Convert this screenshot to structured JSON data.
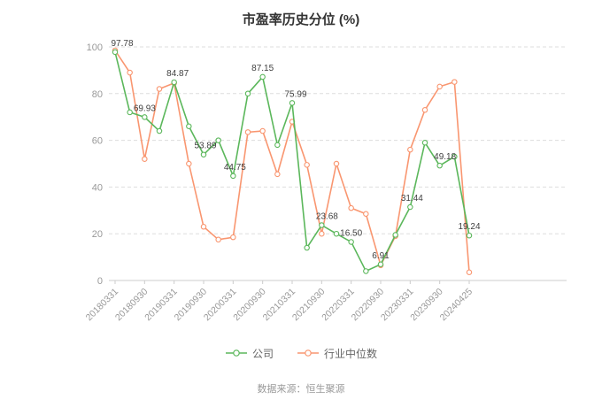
{
  "title": "市盈率历史分位 (%)",
  "footer": "数据来源：恒生聚源",
  "colors": {
    "company": "#5bb75b",
    "industry": "#f99670",
    "grid": "#dddddd",
    "axis": "#cccccc",
    "axis_text": "#999999",
    "label_text": "#404040",
    "background": "#ffffff"
  },
  "chart_data": {
    "type": "line",
    "title": "市盈率历史分位 (%)",
    "x": [
      "20180331",
      "20180630",
      "20180930",
      "20181231",
      "20190331",
      "20190630",
      "20190930",
      "20191231",
      "20200331",
      "20200630",
      "20200930",
      "20201231",
      "20210331",
      "20210630",
      "20210930",
      "20211231",
      "20220331",
      "20220630",
      "20220930",
      "20221231",
      "20230331",
      "20230630",
      "20230930",
      "20231231",
      "20240425"
    ],
    "x_tick_labels": [
      "20180331",
      "20180930",
      "20190331",
      "20190930",
      "20200331",
      "20200930",
      "20210331",
      "20210930",
      "20220331",
      "20220930",
      "20230331",
      "20230930",
      "20240425"
    ],
    "x_tick_indices": [
      0,
      2,
      4,
      6,
      8,
      10,
      12,
      14,
      16,
      18,
      20,
      22,
      24
    ],
    "ylim": [
      0,
      100
    ],
    "yticks": [
      0,
      20,
      40,
      60,
      80,
      100
    ],
    "grid": "horizontal-dashed",
    "legend_position": "bottom",
    "series": [
      {
        "name": "公司",
        "color": "#5bb75b",
        "values": [
          97.78,
          72.0,
          69.93,
          64.0,
          84.87,
          66.0,
          53.89,
          60.0,
          44.75,
          80.0,
          87.15,
          58.0,
          75.99,
          14.0,
          23.68,
          20.0,
          16.5,
          4.0,
          6.91,
          19.5,
          31.44,
          59.0,
          49.18,
          53.0,
          19.24
        ]
      },
      {
        "name": "行业中位数",
        "color": "#f99670",
        "values": [
          98.5,
          89.0,
          52.0,
          82.0,
          84.5,
          50.0,
          23.0,
          17.5,
          18.5,
          63.5,
          64.0,
          45.5,
          68.0,
          49.5,
          20.0,
          50.0,
          31.0,
          28.5,
          6.5,
          19.0,
          56.0,
          73.0,
          83.0,
          85.0,
          3.5
        ]
      }
    ],
    "point_labels": {
      "series": "公司",
      "labels": [
        {
          "index": 0,
          "text": "97.78",
          "dx": 8
        },
        {
          "index": 2,
          "text": "69.93",
          "dx": 0
        },
        {
          "index": 4,
          "text": "84.87",
          "dx": 4
        },
        {
          "index": 6,
          "text": "53.89",
          "dx": 2
        },
        {
          "index": 8,
          "text": "44.75",
          "dx": 2
        },
        {
          "index": 10,
          "text": "87.15",
          "dx": 0
        },
        {
          "index": 12,
          "text": "75.99",
          "dx": 4
        },
        {
          "index": 14,
          "text": "23.68",
          "dx": 6
        },
        {
          "index": 16,
          "text": "16.50",
          "dx": 0
        },
        {
          "index": 18,
          "text": "6.91",
          "dx": 0
        },
        {
          "index": 20,
          "text": "31.44",
          "dx": 2
        },
        {
          "index": 22,
          "text": "49.18",
          "dx": 6
        },
        {
          "index": 24,
          "text": "19.24",
          "dx": 0
        }
      ]
    }
  }
}
